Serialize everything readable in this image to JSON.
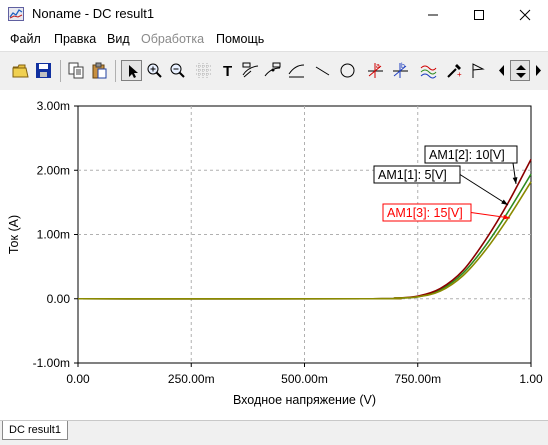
{
  "window": {
    "title": "Noname - DC result1",
    "minimize_icon": "minimize-icon",
    "maximize_icon": "maximize-icon",
    "close_icon": "close-icon"
  },
  "menu": [
    {
      "label": "Файл",
      "enabled": true
    },
    {
      "label": "Правка",
      "enabled": true
    },
    {
      "label": "Вид",
      "enabled": true
    },
    {
      "label": "Обработка",
      "enabled": false
    },
    {
      "label": "Помощь",
      "enabled": true
    }
  ],
  "toolbar": {
    "icons": [
      "open-folder-icon",
      "save-icon",
      "copy-icon",
      "paste-icon",
      "pointer-icon",
      "zoom-in-icon",
      "zoom-out-icon",
      "grid-icon",
      "text-icon",
      "label-curve-icon",
      "label-point-icon",
      "label-line-icon",
      "line-icon",
      "circle-icon",
      "cursor-a-icon",
      "cursor-b-icon",
      "curves-icon",
      "pick-icon",
      "flag-icon",
      "scroll-left-icon",
      "scroll-updown-icon",
      "scroll-right-icon"
    ]
  },
  "chart_data": {
    "type": "line",
    "xlabel": "Входное напряжение (V)",
    "ylabel": "Ток (A)",
    "x_ticks": [
      "0.00",
      "250.00m",
      "500.00m",
      "750.00m",
      "1.00"
    ],
    "y_ticks": [
      "3.00m",
      "2.00m",
      "1.00m",
      "0.00",
      "-1.00m"
    ],
    "xlim": [
      0,
      1
    ],
    "ylim": [
      -0.001,
      0.003
    ],
    "grid": true,
    "series": [
      {
        "name": "AM1[1]: 5[V]",
        "color": "#2e8b1f",
        "x": [
          0,
          0.65,
          0.7,
          0.75,
          0.8,
          0.85,
          0.9,
          0.95,
          1.0
        ],
        "y": [
          0,
          0,
          1e-05,
          3e-05,
          0.00014,
          0.0004,
          0.00083,
          0.00136,
          0.00194
        ]
      },
      {
        "name": "AM1[2]: 10[V]",
        "color": "#8b0000",
        "x": [
          0,
          0.65,
          0.7,
          0.75,
          0.8,
          0.85,
          0.9,
          0.95,
          1.0
        ],
        "y": [
          0,
          0,
          1e-05,
          4e-05,
          0.00016,
          0.00044,
          0.00092,
          0.0015,
          0.00217
        ]
      },
      {
        "name": "AM1[3]: 15[V]",
        "color": "#8a8a00",
        "x": [
          0,
          0.65,
          0.7,
          0.75,
          0.8,
          0.85,
          0.9,
          0.95,
          1.0
        ],
        "y": [
          0,
          0,
          1e-05,
          3e-05,
          0.00012,
          0.00036,
          0.00076,
          0.00126,
          0.00182
        ]
      }
    ],
    "annotations": [
      {
        "text": "AM1[2]: 10[V]",
        "series": 1,
        "color": "#000000"
      },
      {
        "text": "AM1[1]: 5[V]",
        "series": 0,
        "color": "#000000"
      },
      {
        "text": "AM1[3]: 15[V]",
        "series": 2,
        "color": "#ff0000"
      }
    ]
  },
  "tabs": [
    {
      "label": "DC result1"
    }
  ]
}
